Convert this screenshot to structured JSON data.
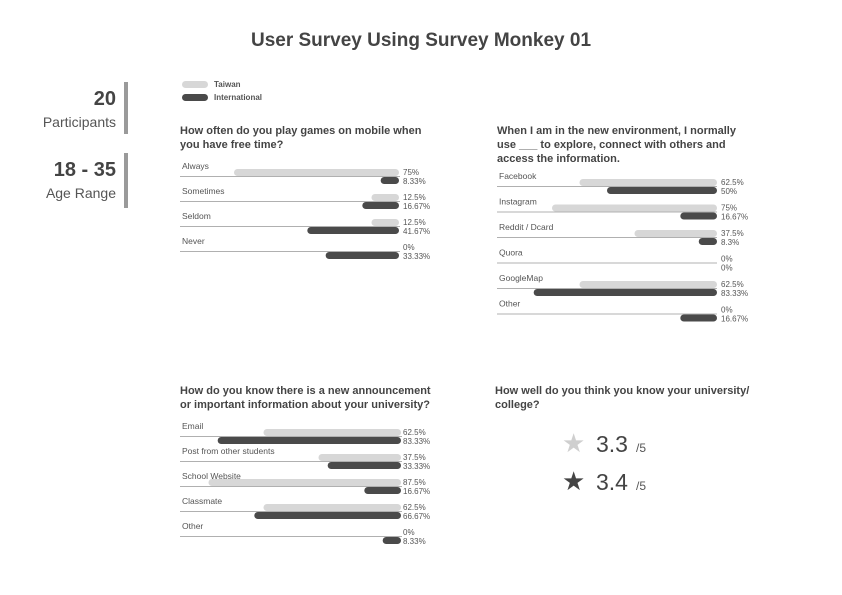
{
  "title": "User Survey Using Survey Monkey 01",
  "stats": [
    {
      "value": "20",
      "label": "Participants"
    },
    {
      "value": "18 - 35",
      "label": "Age Range"
    }
  ],
  "legend": {
    "taiwan": {
      "name": "Taiwan",
      "color": "#d7d7d7"
    },
    "international": {
      "name": "International",
      "color": "#4a4a4a"
    }
  },
  "colors": {
    "line": "#b0b0b0",
    "text": "#555555"
  },
  "questions": {
    "q1": "How often do you play games on mobile when you have free time?",
    "q2": "When I am in the new environment, I normally use ___ to explore, connect with others and access the information.",
    "q3": "How do you know there is a new announcement or important information about your university?",
    "q4": "How well do you think you know your university/ college?"
  },
  "ratings": [
    {
      "icon": "star-outline-icon",
      "color": "#cfcfcf",
      "value": "3.3",
      "max": "/5"
    },
    {
      "icon": "star-filled-icon",
      "color": "#444444",
      "value": "3.4",
      "max": "/5"
    }
  ],
  "chart_data": [
    {
      "type": "bar",
      "orientation": "horizontal",
      "categories": [
        "Always",
        "Sometimes",
        "Seldom",
        "Never"
      ],
      "series": [
        {
          "name": "Taiwan",
          "values": [
            75,
            12.5,
            12.5,
            0
          ],
          "labels": [
            "75%",
            "12.5%",
            "12.5%",
            "0%"
          ]
        },
        {
          "name": "International",
          "values": [
            8.33,
            16.67,
            41.67,
            33.33
          ],
          "labels": [
            "8.33%",
            "16.67%",
            "41.67%",
            "33.33%"
          ]
        }
      ],
      "xlim": [
        0,
        100
      ]
    },
    {
      "type": "bar",
      "orientation": "horizontal",
      "categories": [
        "Facebook",
        "Instagram",
        "Reddit / Dcard",
        "Quora",
        "GoogleMap",
        "Other"
      ],
      "series": [
        {
          "name": "Taiwan",
          "values": [
            62.5,
            75,
            37.5,
            0,
            62.5,
            0
          ],
          "labels": [
            "62.5%",
            "75%",
            "37.5%",
            "0%",
            "62.5%",
            "0%"
          ]
        },
        {
          "name": "International",
          "values": [
            50,
            16.67,
            8.3,
            0,
            83.33,
            16.67
          ],
          "labels": [
            "50%",
            "16.67%",
            "8.3%",
            "0%",
            "83.33%",
            "16.67%"
          ]
        }
      ],
      "xlim": [
        0,
        100
      ]
    },
    {
      "type": "bar",
      "orientation": "horizontal",
      "categories": [
        "Email",
        "Post from other students",
        "School Website",
        "Classmate",
        "Other"
      ],
      "series": [
        {
          "name": "Taiwan",
          "values": [
            62.5,
            37.5,
            87.5,
            62.5,
            0
          ],
          "labels": [
            "62.5%",
            "37.5%",
            "87.5%",
            "62.5%",
            "0%"
          ]
        },
        {
          "name": "International",
          "values": [
            83.33,
            33.33,
            16.67,
            66.67,
            8.33
          ],
          "labels": [
            "83.33%",
            "33.33%",
            "16.67%",
            "66.67%",
            "8.33%"
          ]
        }
      ],
      "xlim": [
        0,
        100
      ]
    }
  ]
}
